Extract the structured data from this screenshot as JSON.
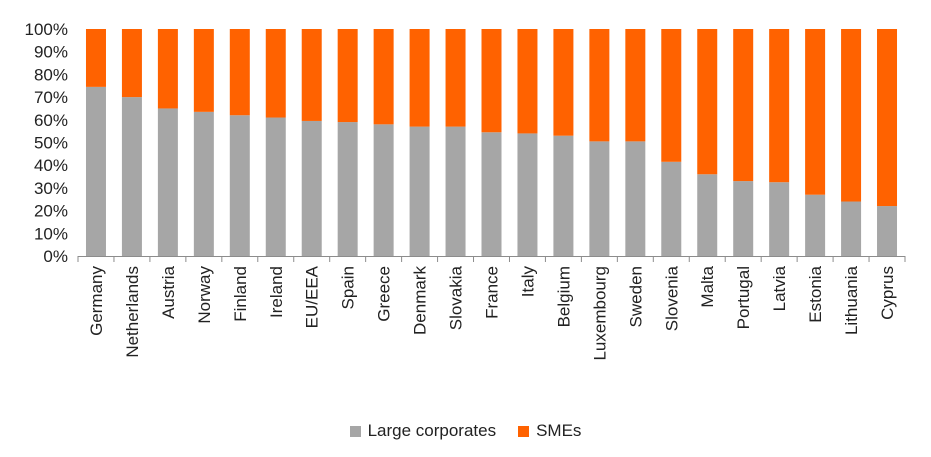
{
  "chart_data": {
    "type": "bar",
    "stacked": true,
    "categories": [
      "Germany",
      "Netherlands",
      "Austria",
      "Norway",
      "Finland",
      "Ireland",
      "EU/EEA",
      "Spain",
      "Greece",
      "Denmark",
      "Slovakia",
      "France",
      "Italy",
      "Belgium",
      "Luxembourg",
      "Sweden",
      "Slovenia",
      "Malta",
      "Portugal",
      "Latvia",
      "Estonia",
      "Lithuania",
      "Cyprus"
    ],
    "series": [
      {
        "name": "Large corporates",
        "color": "#a6a6a6",
        "values": [
          74.5,
          70,
          65,
          63.5,
          62,
          61,
          59.5,
          59,
          58,
          57,
          57,
          54.5,
          54,
          53,
          50.5,
          50.5,
          41.5,
          36,
          33,
          32.5,
          27,
          24,
          22
        ]
      },
      {
        "name": "SMEs",
        "color": "#ff6200",
        "values": [
          25.5,
          30,
          35,
          36.5,
          38,
          39,
          40.5,
          41,
          42,
          43,
          43,
          45.5,
          46,
          47,
          49.5,
          49.5,
          58.5,
          64,
          67,
          67.5,
          73,
          76,
          78
        ]
      }
    ],
    "yticks": [
      "0%",
      "10%",
      "20%",
      "30%",
      "40%",
      "50%",
      "60%",
      "70%",
      "80%",
      "90%",
      "100%"
    ],
    "ylim": [
      0,
      100
    ],
    "grid": false,
    "legend_position": "bottom"
  }
}
